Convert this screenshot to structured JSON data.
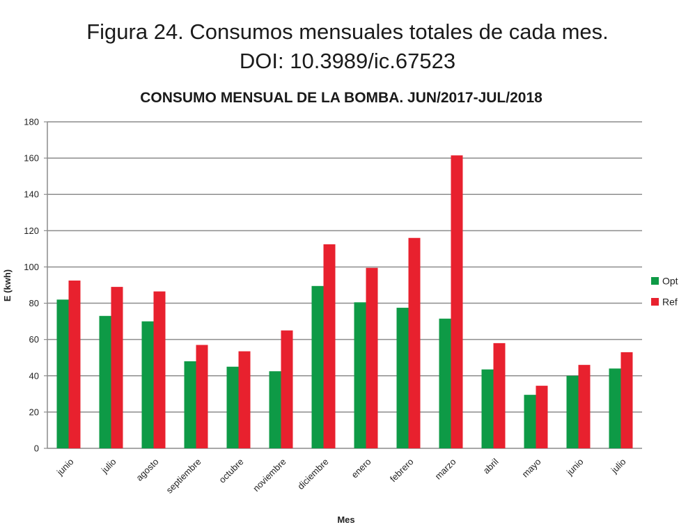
{
  "caption": {
    "line1": "Figura 24. Consumos mensuales totales de cada mes.",
    "line2": "DOI: 10.3989/ic.67523"
  },
  "chart_data": {
    "type": "bar",
    "title": "CONSUMO MENSUAL DE LA BOMBA. JUN/2017-JUL/2018",
    "xlabel": "Mes",
    "ylabel": "E (kwh)",
    "ylim": [
      0,
      180
    ],
    "yticks": [
      0,
      20,
      40,
      60,
      80,
      100,
      120,
      140,
      160,
      180
    ],
    "grid": true,
    "legend_position": "right",
    "categories": [
      "junio",
      "julio",
      "agosto",
      "septiembre",
      "octubre",
      "noviembre",
      "diciembre",
      "enero",
      "febrero",
      "marzo",
      "abril",
      "mayo",
      "junio",
      "julio"
    ],
    "series": [
      {
        "name": "Opt",
        "color": "#0e9a46",
        "values": [
          82,
          73,
          70,
          48,
          45,
          42.5,
          89.5,
          80.5,
          77.5,
          71.5,
          43.5,
          29.5,
          40,
          44
        ]
      },
      {
        "name": "Ref",
        "color": "#e8212e",
        "values": [
          92.5,
          89,
          86.5,
          57,
          53.5,
          65,
          112.5,
          99.5,
          116,
          161.5,
          58,
          34.5,
          46,
          53
        ]
      }
    ]
  }
}
